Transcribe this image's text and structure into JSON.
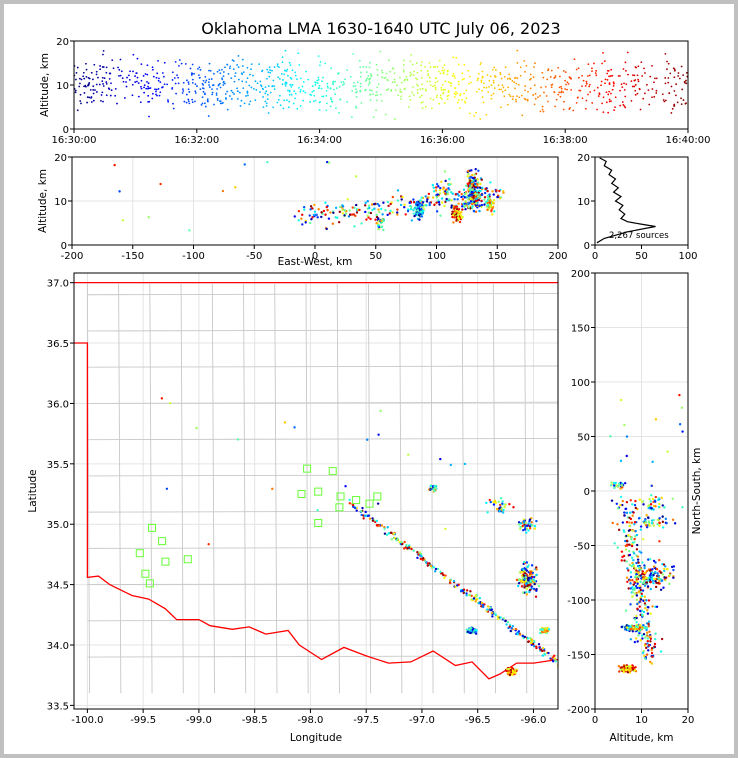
{
  "chart_data": [
    {
      "type": "scatter",
      "panel": "altitude-vs-time",
      "title": "Oklahoma LMA 1630-1640 UTC July 06, 2023",
      "xlabel": "",
      "ylabel": "Altitude, km",
      "xlim": [
        0,
        600
      ],
      "ylim": [
        0,
        20
      ],
      "x_ticks": [
        0,
        120,
        240,
        360,
        480,
        600
      ],
      "x_tick_labels": [
        "16:30:00",
        "16:32:00",
        "16:34:00",
        "16:36:00",
        "16:38:00",
        "16:40:00"
      ],
      "y_ticks": [
        0,
        10,
        20
      ],
      "color_by": "time",
      "colormap": "jet",
      "grid": false
    },
    {
      "type": "scatter",
      "panel": "altitude-vs-east-west",
      "xlabel": "East-West, km",
      "ylabel": "Altitude, km",
      "xlim": [
        -200,
        200
      ],
      "ylim": [
        0,
        20
      ],
      "x_ticks": [
        -200,
        -150,
        -100,
        -50,
        0,
        50,
        100,
        150,
        200
      ],
      "y_ticks": [
        0,
        10,
        20
      ],
      "grid": true
    },
    {
      "type": "line",
      "panel": "source-count-histogram",
      "xlim": [
        0,
        100
      ],
      "ylim": [
        0,
        20
      ],
      "x_ticks": [
        0,
        50,
        100
      ],
      "y_ticks": [
        0,
        10,
        20
      ],
      "annotation": "2,267 sources",
      "profile": [
        [
          2,
          0.5
        ],
        [
          10,
          1.5
        ],
        [
          35,
          3
        ],
        [
          65,
          4.2
        ],
        [
          48,
          4.8
        ],
        [
          35,
          5.3
        ],
        [
          28,
          6
        ],
        [
          32,
          7
        ],
        [
          26,
          8
        ],
        [
          30,
          9
        ],
        [
          22,
          10
        ],
        [
          28,
          11
        ],
        [
          20,
          12
        ],
        [
          25,
          13
        ],
        [
          18,
          14
        ],
        [
          22,
          15
        ],
        [
          15,
          16
        ],
        [
          18,
          17
        ],
        [
          10,
          18
        ],
        [
          12,
          19
        ],
        [
          5,
          19.8
        ]
      ]
    },
    {
      "type": "scatter",
      "panel": "plan-view-map",
      "xlabel": "Longitude",
      "ylabel": "Latitude",
      "xlim": [
        -100.12,
        -95.78
      ],
      "ylim": [
        33.47,
        37.08
      ],
      "x_ticks": [
        -100.0,
        -99.5,
        -99.0,
        -98.5,
        -98.0,
        -97.5,
        -97.0,
        -96.5,
        -96.0
      ],
      "y_ticks": [
        33.5,
        34.0,
        34.5,
        35.0,
        35.5,
        36.0,
        36.5,
        37.0
      ],
      "stations": [
        [
          -99.42,
          34.97
        ],
        [
          -99.33,
          34.86
        ],
        [
          -99.53,
          34.76
        ],
        [
          -99.3,
          34.69
        ],
        [
          -99.48,
          34.59
        ],
        [
          -99.44,
          34.51
        ],
        [
          -99.1,
          34.71
        ],
        [
          -98.03,
          35.46
        ],
        [
          -97.8,
          35.44
        ],
        [
          -97.93,
          35.27
        ],
        [
          -98.08,
          35.25
        ],
        [
          -97.73,
          35.23
        ],
        [
          -97.59,
          35.2
        ],
        [
          -97.47,
          35.17
        ],
        [
          -97.4,
          35.23
        ],
        [
          -97.74,
          35.14
        ],
        [
          -97.93,
          35.01
        ]
      ],
      "grid": true
    },
    {
      "type": "scatter",
      "panel": "north-south-vs-altitude",
      "xlabel": "Altitude, km",
      "ylabel": "North-South, km",
      "xlim": [
        0,
        20
      ],
      "ylim": [
        -200,
        200
      ],
      "x_ticks": [
        0,
        10,
        20
      ],
      "y_ticks": [
        -200,
        -150,
        -100,
        -50,
        0,
        50,
        100,
        150,
        200
      ],
      "grid": true
    }
  ],
  "colors": {
    "stations": "#66ff33",
    "state_border": "#ff0000",
    "counties": "#c8c8c8",
    "histogram": "#000000"
  }
}
